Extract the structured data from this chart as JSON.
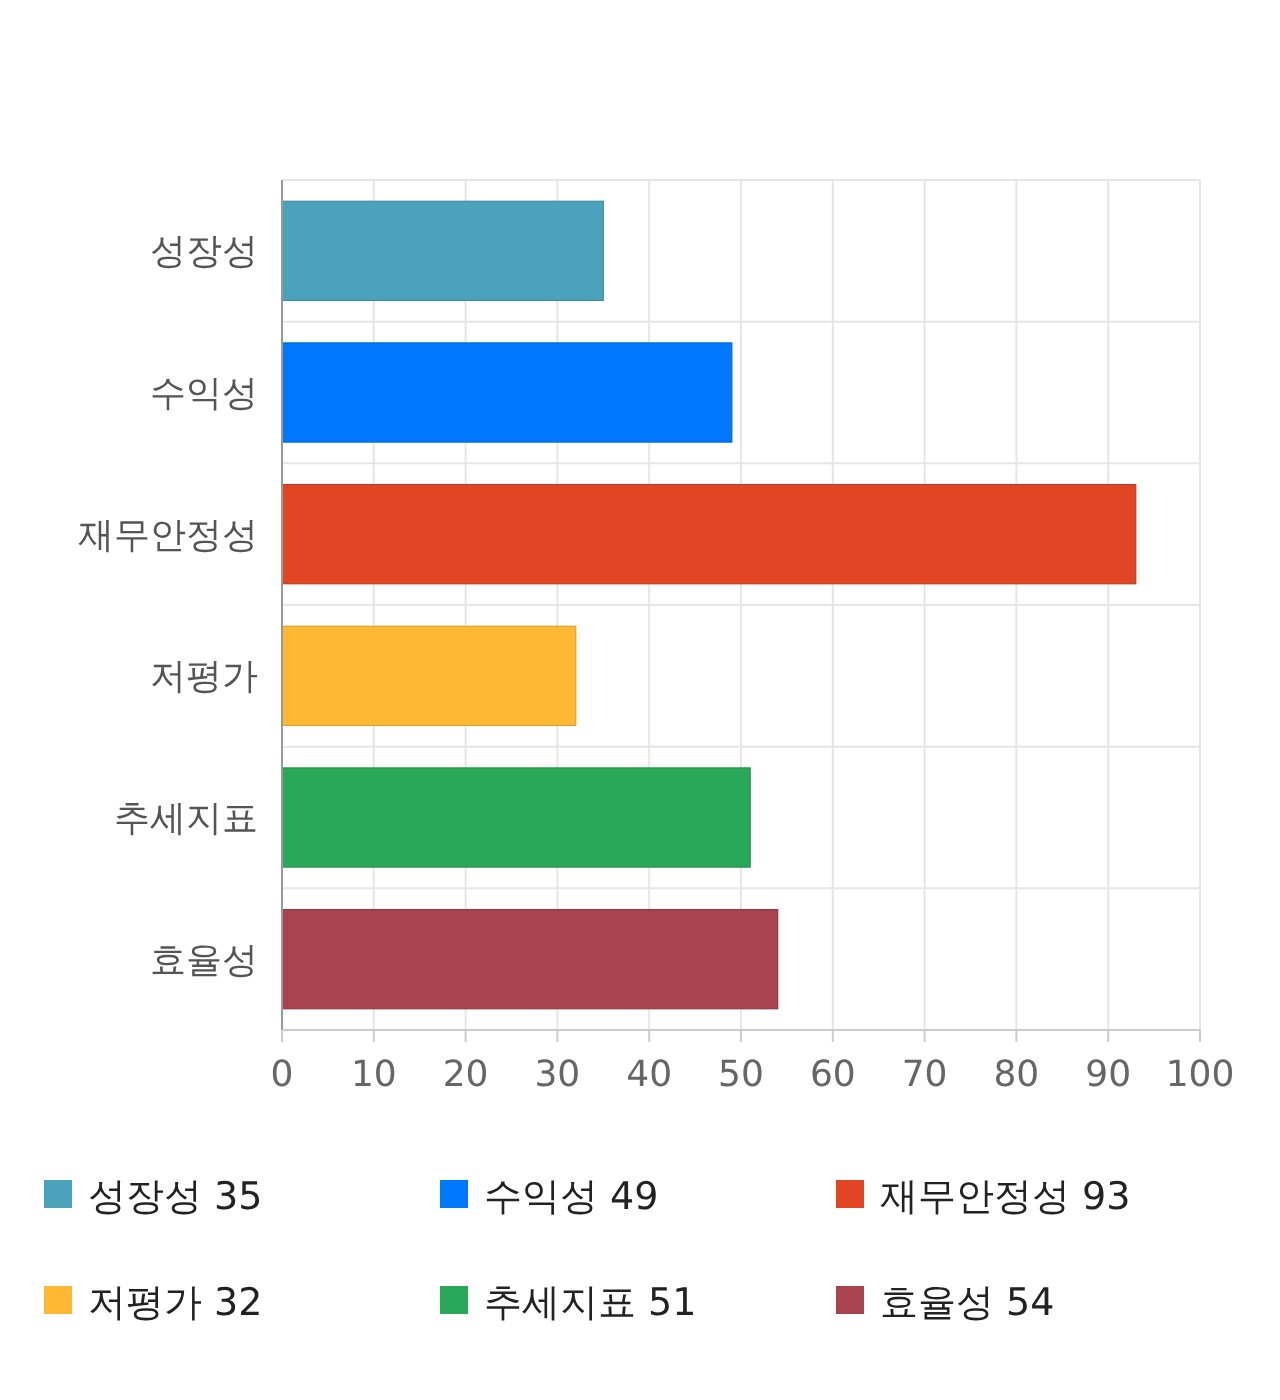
{
  "chart_data": {
    "type": "bar",
    "orientation": "horizontal",
    "stacked": true,
    "categories": [
      "성장성",
      "수익성",
      "재무안정성",
      "저평가",
      "추세지표",
      "효율성"
    ],
    "series": [
      {
        "name": "성장성 35",
        "color": "#4aa3ba",
        "values": [
          35,
          null,
          null,
          null,
          null,
          null
        ]
      },
      {
        "name": "수익성 49",
        "color": "#0077ff",
        "values": [
          null,
          49,
          null,
          null,
          null,
          null
        ]
      },
      {
        "name": "재무안정성 93",
        "color": "#e24524",
        "values": [
          null,
          null,
          93,
          null,
          null,
          null
        ]
      },
      {
        "name": "저평가 32",
        "color": "#ffb833",
        "values": [
          null,
          null,
          null,
          32,
          null,
          null
        ]
      },
      {
        "name": "추세지표 51",
        "color": "#28a858",
        "values": [
          null,
          null,
          null,
          null,
          51,
          null
        ]
      },
      {
        "name": "효율성 54",
        "color": "#a8434f",
        "values": [
          null,
          null,
          null,
          null,
          null,
          54
        ]
      }
    ],
    "xlim": [
      0,
      100
    ],
    "xticks": [
      0,
      10,
      20,
      30,
      40,
      50,
      60,
      70,
      80,
      90,
      100
    ],
    "grid": true,
    "legend": "bottom"
  }
}
